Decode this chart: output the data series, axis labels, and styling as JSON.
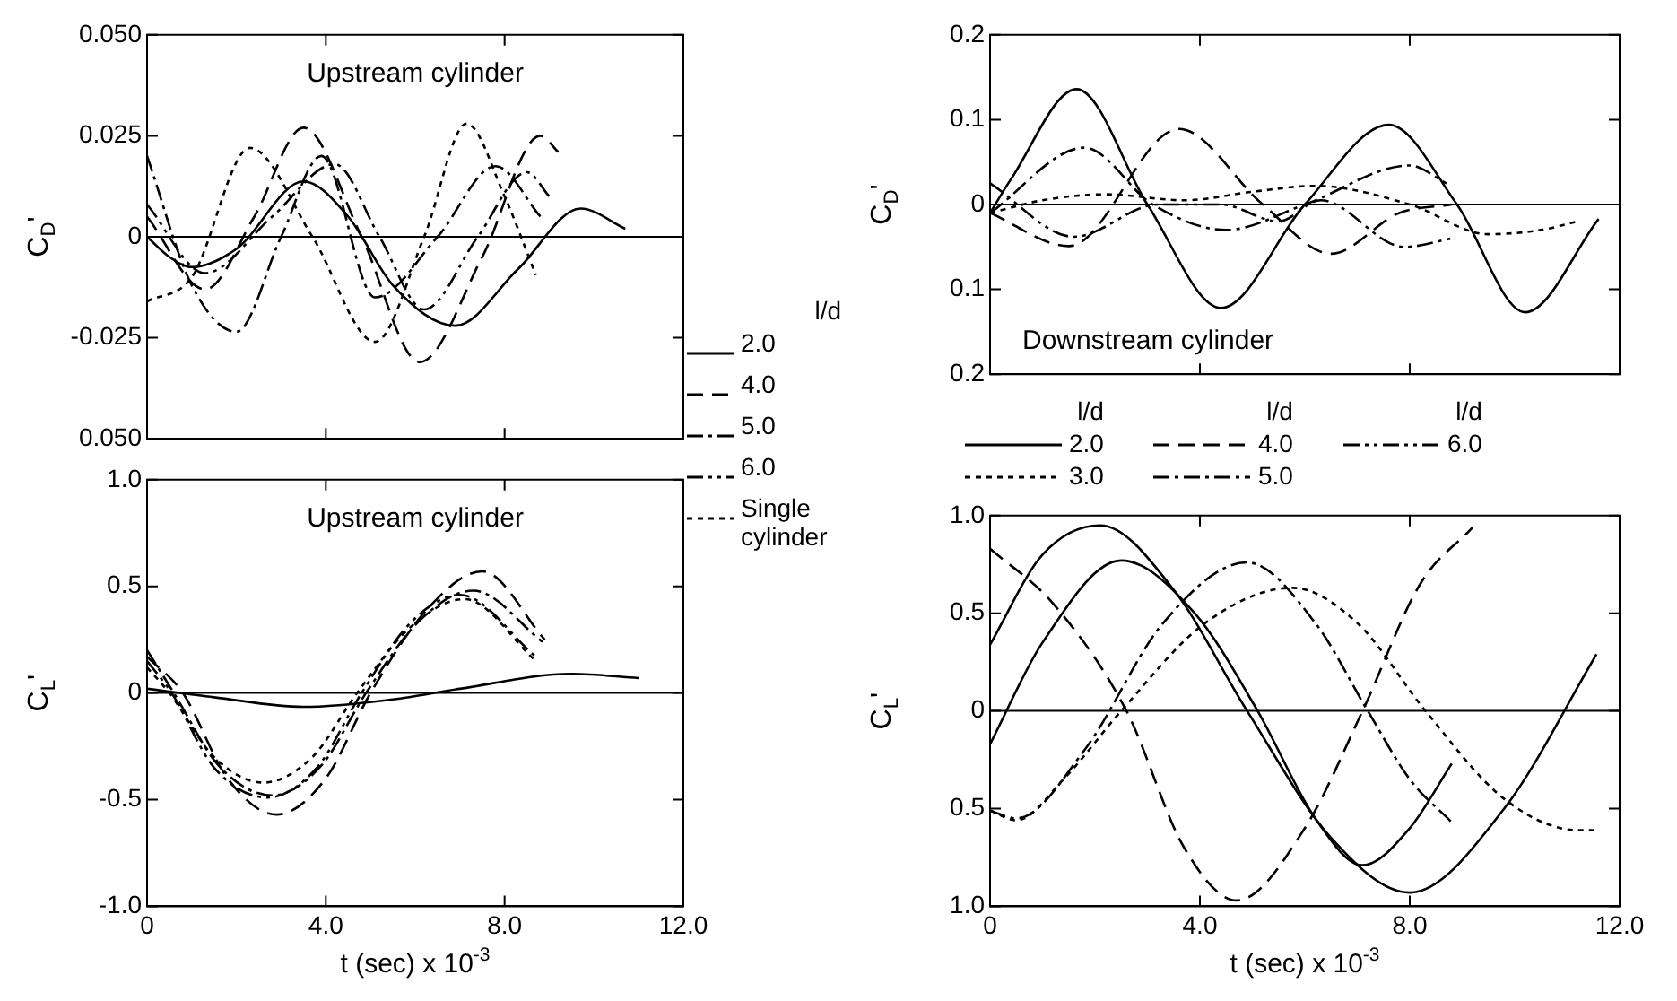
{
  "chart_data": [
    {
      "type": "line",
      "title": "Upstream cylinder",
      "ylabel": "C$_{D}$'",
      "legend": "right",
      "legend_title": "l/d",
      "tick_labels": "y",
      "grid": false,
      "xlim": [
        0,
        12
      ],
      "xticks": [
        0,
        4,
        8,
        12
      ],
      "ylim": [
        -0.05,
        0.05
      ],
      "yticks": [
        {
          "value": -0.05,
          "label": "0.050"
        },
        {
          "value": -0.025,
          "label": "-0.025"
        },
        0,
        {
          "value": 0.025,
          "label": "0.025"
        },
        {
          "value": 0.05,
          "label": "0.050"
        }
      ],
      "ref_lines": [
        {
          "axis": "y",
          "value": 0
        }
      ],
      "series": [
        {
          "name": "2.0",
          "color": "#000000",
          "line_style": "solid",
          "x": [
            0,
            0.5,
            1.0,
            2.0,
            3.5,
            4.5,
            5.5,
            6.9,
            8.3,
            9.7,
            10.7
          ],
          "values": [
            0.0,
            -0.005,
            -0.0075,
            -0.003,
            0.0137,
            0.005,
            -0.012,
            -0.022,
            -0.008,
            0.007,
            0.002
          ]
        },
        {
          "name": "4.0",
          "color": "#000000",
          "line_style": "dashed",
          "x": [
            0,
            1.3,
            2.4,
            3.5,
            4.8,
            6.1,
            7.5,
            8.8,
            9.2
          ],
          "values": [
            0.005,
            -0.013,
            0.005,
            0.027,
            0.0,
            -0.031,
            -0.005,
            0.025,
            0.021
          ]
        },
        {
          "name": "5.0",
          "color": "#000000",
          "line_style": "dashdot",
          "x": [
            0,
            1.0,
            2.0,
            3.0,
            3.9,
            5.1,
            6.5,
            7.8,
            8.8
          ],
          "values": [
            0.02,
            -0.012,
            -0.0235,
            0.0,
            0.02,
            -0.015,
            0.0,
            0.0175,
            0.005
          ]
        },
        {
          "name": "6.0",
          "color": "#000000",
          "line_style": "dashdotdot",
          "x": [
            0,
            1.3,
            2.8,
            4.2,
            5.2,
            6.2,
            7.4,
            8.5,
            9.0
          ],
          "values": [
            0.008,
            -0.009,
            0.005,
            0.018,
            0.0,
            -0.018,
            0.0,
            0.016,
            0.01
          ]
        },
        {
          "name": "Single cylinder",
          "color": "#000000",
          "line_style": "dotted",
          "x": [
            0,
            1.0,
            2.3,
            3.7,
            5.1,
            6.2,
            7.15,
            8.0,
            8.7
          ],
          "values": [
            -0.016,
            -0.01,
            0.022,
            0.0,
            -0.026,
            0.0,
            0.028,
            0.01,
            -0.0095
          ]
        }
      ]
    },
    {
      "type": "line",
      "title": "Downstream cylinder",
      "ylabel": "C$_{D}$'",
      "legend": "bottom",
      "legend_title": "l/d",
      "tick_labels": "y",
      "grid": false,
      "xlim": [
        0,
        12
      ],
      "xticks": [
        0,
        4,
        8,
        12
      ],
      "ylim": [
        -0.2,
        0.2
      ],
      "yticks": [
        {
          "value": -0.2,
          "label": "0.2"
        },
        {
          "value": -0.1,
          "label": "0.1"
        },
        0,
        0.1,
        0.2
      ],
      "ref_lines": [
        {
          "axis": "y",
          "value": 0
        }
      ],
      "series": [
        {
          "name": "2.0",
          "color": "#000000",
          "line_style": "solid",
          "x": [
            0,
            0.4,
            1.65,
            3.0,
            4.4,
            6.0,
            7.6,
            8.9,
            10.2,
            11.6
          ],
          "values": [
            -0.01,
            0.03,
            0.136,
            0.0,
            -0.122,
            0.0,
            0.094,
            0.0,
            -0.127,
            -0.017
          ]
        },
        {
          "name": "3.0",
          "color": "#000000",
          "line_style": "dotted",
          "x": [
            0,
            1.0,
            2.2,
            3.7,
            5.0,
            6.2,
            8.0,
            9.5,
            10.5,
            11.2
          ],
          "values": [
            -0.01,
            0.005,
            0.012,
            0.005,
            0.015,
            0.022,
            0.0,
            -0.035,
            -0.03,
            -0.02
          ]
        },
        {
          "name": "4.0",
          "color": "#000000",
          "line_style": "dashed",
          "x": [
            0,
            1.5,
            3.6,
            5.2,
            6.5,
            7.8,
            8.8
          ],
          "values": [
            -0.01,
            -0.049,
            0.089,
            0.0,
            -0.058,
            -0.01,
            0.0
          ]
        },
        {
          "name": "5.0",
          "color": "#000000",
          "line_style": "dashdot",
          "x": [
            0,
            1.8,
            3.1,
            4.5,
            6.0,
            8.0,
            8.7
          ],
          "values": [
            -0.01,
            0.067,
            0.0,
            -0.03,
            0.0,
            0.046,
            0.025
          ]
        },
        {
          "name": "6.0",
          "color": "#000000",
          "line_style": "dashdotdot",
          "x": [
            0,
            1.6,
            3.2,
            4.4,
            5.5,
            6.3,
            7.9,
            8.8
          ],
          "values": [
            0.025,
            -0.038,
            0.0,
            0.0,
            -0.02,
            0.005,
            -0.05,
            -0.04
          ]
        }
      ]
    },
    {
      "type": "line",
      "title": "Upstream cylinder",
      "ylabel": "C$_{L}$'",
      "xlabel": "t (sec) x 10$^{-3}$",
      "grid": false,
      "xlim": [
        0,
        12
      ],
      "xticks": [
        0,
        {
          "value": 4,
          "label": "4.0"
        },
        {
          "value": 8,
          "label": "8.0"
        },
        {
          "value": 12,
          "label": "12.0"
        }
      ],
      "ylim": [
        -1,
        1
      ],
      "yticks": [
        {
          "value": -1,
          "label": "-1.0"
        },
        {
          "value": -0.5,
          "label": "-0.5"
        },
        0,
        0.5,
        {
          "value": 1,
          "label": "1.0"
        }
      ],
      "ref_lines": [
        {
          "axis": "y",
          "value": 0
        }
      ],
      "series": [
        {
          "color": "#000000",
          "line_style": "solid",
          "x": [
            0,
            1.5,
            3.5,
            5.5,
            7.0,
            9.5,
            11.0
          ],
          "values": [
            0.02,
            -0.02,
            -0.065,
            -0.03,
            0.02,
            0.09,
            0.07
          ]
        },
        {
          "color": "#000000",
          "line_style": "dashed",
          "x": [
            0,
            0.8,
            1.8,
            2.9,
            4.0,
            5.0,
            6.3,
            7.5,
            8.9
          ],
          "values": [
            0.17,
            0.0,
            -0.4,
            -0.57,
            -0.4,
            0.0,
            0.4,
            0.57,
            0.25
          ]
        },
        {
          "color": "#000000",
          "line_style": "dashdot",
          "x": [
            0,
            0.6,
            1.6,
            2.8,
            3.9,
            4.9,
            6.1,
            7.3,
            8.85
          ],
          "values": [
            0.2,
            0.0,
            -0.34,
            -0.48,
            -0.34,
            0.0,
            0.34,
            0.48,
            0.24
          ]
        },
        {
          "color": "#000000",
          "line_style": "dashdotdot",
          "x": [
            0,
            0.55,
            1.5,
            2.7,
            3.8,
            4.8,
            5.9,
            7.0,
            8.7
          ],
          "values": [
            0.15,
            0.0,
            -0.35,
            -0.49,
            -0.35,
            0.0,
            0.33,
            0.46,
            0.17
          ]
        },
        {
          "color": "#000000",
          "line_style": "dotted",
          "x": [
            0,
            0.5,
            1.5,
            2.6,
            3.7,
            4.7,
            5.9,
            7.1,
            8.7
          ],
          "values": [
            0.12,
            0.0,
            -0.3,
            -0.42,
            -0.3,
            0.0,
            0.31,
            0.44,
            0.15
          ]
        }
      ]
    },
    {
      "type": "line",
      "ylabel": "C$_{L}$'",
      "xlabel": "t (sec) x 10$^{-3}$",
      "grid": false,
      "xlim": [
        0,
        12
      ],
      "xticks": [
        0,
        {
          "value": 4,
          "label": "4.0"
        },
        {
          "value": 8,
          "label": "8.0"
        },
        {
          "value": 12,
          "label": "12.0"
        }
      ],
      "ylim": [
        -1,
        1
      ],
      "yticks": [
        {
          "value": -1,
          "label": "1.0"
        },
        {
          "value": -0.5,
          "label": "0.5"
        },
        0,
        0.5,
        {
          "value": 1,
          "label": "1.0"
        }
      ],
      "ref_lines": [
        {
          "axis": "y",
          "value": 0
        }
      ],
      "series": [
        {
          "color": "#000000",
          "line_style": "solid",
          "x": [
            0,
            1.0,
            2.1,
            3.5,
            4.9,
            6.5,
            8.0,
            9.8,
            11.56
          ],
          "values": [
            0.34,
            0.8,
            0.95,
            0.62,
            0.0,
            -0.65,
            -0.93,
            -0.5,
            0.29
          ]
        },
        {
          "color": "#000000",
          "line_style": "dotted",
          "x": [
            0,
            0.5,
            1.4,
            2.5,
            4.1,
            5.76,
            7.0,
            8.3,
            9.8,
            11.2,
            11.56
          ],
          "values": [
            -0.51,
            -0.56,
            -0.35,
            0.0,
            0.45,
            0.63,
            0.45,
            0.0,
            -0.45,
            -0.61,
            -0.61
          ]
        },
        {
          "color": "#000000",
          "line_style": "dashed",
          "x": [
            0,
            1.2,
            2.6,
            3.7,
            4.7,
            6.0,
            7.1,
            8.2,
            9.2
          ],
          "values": [
            0.83,
            0.55,
            0.0,
            -0.7,
            -0.97,
            -0.6,
            0.0,
            0.65,
            0.94
          ]
        },
        {
          "color": "#000000",
          "line_style": "dashdot",
          "x": [
            0,
            0.5,
            1.8,
            3.3,
            4.9,
            6.2,
            7.2,
            8.0,
            8.8
          ],
          "values": [
            -0.51,
            -0.55,
            -0.2,
            0.45,
            0.76,
            0.45,
            0.0,
            -0.35,
            -0.57
          ]
        },
        {
          "color": "#000000",
          "line_style": "solid",
          "x": [
            0,
            1.0,
            2.5,
            3.9,
            5.1,
            6.2,
            7.1,
            8.0,
            8.8
          ],
          "values": [
            -0.17,
            0.35,
            0.77,
            0.5,
            0.0,
            -0.55,
            -0.79,
            -0.6,
            -0.27
          ]
        }
      ]
    }
  ]
}
